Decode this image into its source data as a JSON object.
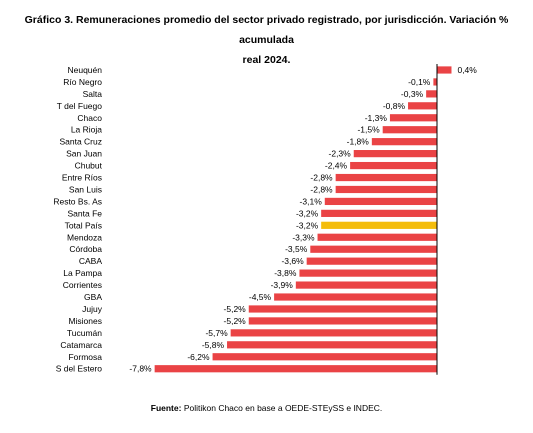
{
  "title": {
    "line1": "Gráfico 3. Remuneraciones promedio del sector privado registrado, por jurisdicción. Variación % acumulada",
    "line2": "real 2024."
  },
  "source": {
    "label": "Fuente:",
    "text": "Politikon Chaco en base a OEDE-STEySS e INDEC."
  },
  "colors": {
    "bar": "#ea4345",
    "highlight": "#f4bd0c",
    "axis": "#000000"
  },
  "chart_data": {
    "type": "bar",
    "orientation": "horizontal",
    "unit": "%",
    "categories": [
      "Neuquén",
      "Río Negro",
      "Salta",
      "T del Fuego",
      "Chaco",
      "La Rioja",
      "Santa Cruz",
      "San Juan",
      "Chubut",
      "Entre Ríos",
      "San Luis",
      "Resto Bs. As",
      "Santa Fe",
      "Total País",
      "Mendoza",
      "Córdoba",
      "CABA",
      "La Pampa",
      "Corrientes",
      "GBA",
      "Jujuy",
      "Misiones",
      "Tucumán",
      "Catamarca",
      "Formosa",
      "S del Estero"
    ],
    "values": [
      0.4,
      -0.1,
      -0.3,
      -0.8,
      -1.3,
      -1.5,
      -1.8,
      -2.3,
      -2.4,
      -2.8,
      -2.8,
      -3.1,
      -3.2,
      -3.2,
      -3.3,
      -3.5,
      -3.6,
      -3.8,
      -3.9,
      -4.5,
      -5.2,
      -5.2,
      -5.7,
      -5.8,
      -6.2,
      -7.8
    ],
    "value_labels": [
      "0,4%",
      "-0,1%",
      "-0,3%",
      "-0,8%",
      "-1,3%",
      "-1,5%",
      "-1,8%",
      "-2,3%",
      "-2,4%",
      "-2,8%",
      "-2,8%",
      "-3,1%",
      "-3,2%",
      "-3,2%",
      "-3,3%",
      "-3,5%",
      "-3,6%",
      "-3,8%",
      "-3,9%",
      "-4,5%",
      "-5,2%",
      "-5,2%",
      "-5,7%",
      "-5,8%",
      "-6,2%",
      "-7,8%"
    ],
    "highlight_category": "Total País",
    "xlim": [
      -8.0,
      0.8
    ]
  }
}
